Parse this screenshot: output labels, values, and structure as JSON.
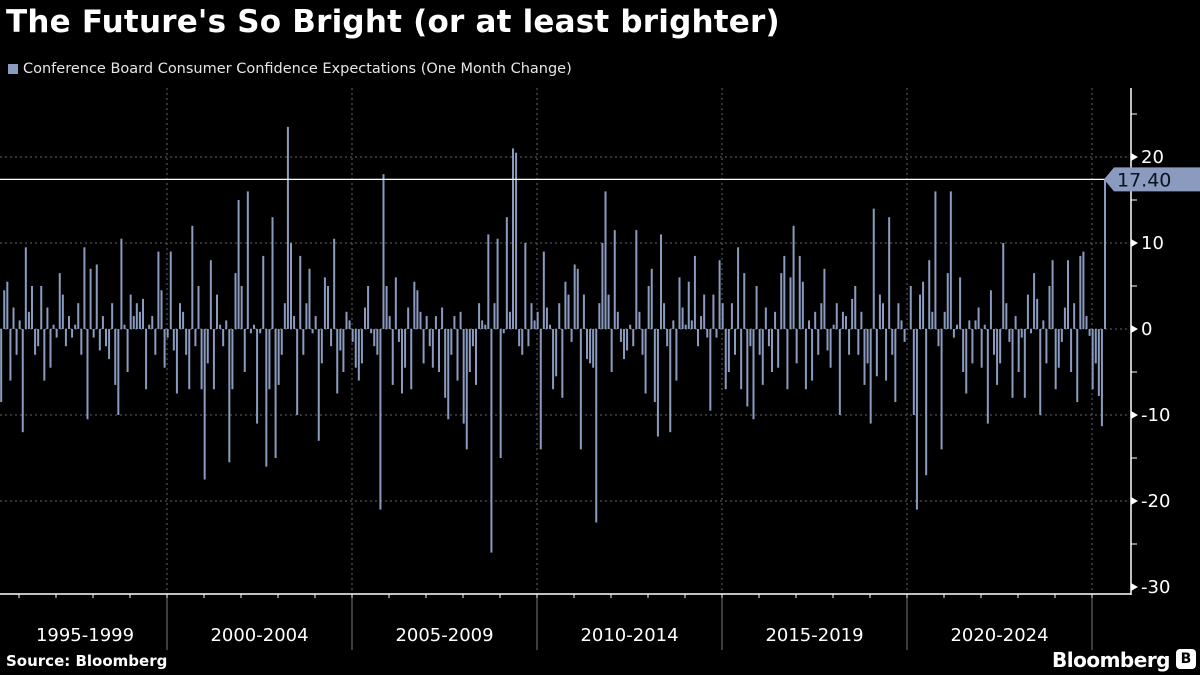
{
  "chart_data": {
    "type": "bar",
    "title": "The Future's So Bright (or at least brighter)",
    "legend": [
      "Conference Board Consumer Confidence Expectations (One Month Change)"
    ],
    "legend_position": "top-left",
    "series_color": "#8a9bbf",
    "start_month": "1995-07",
    "end_month": "2025-05",
    "frequency": "monthly",
    "values": [
      -8.5,
      4.5,
      5.5,
      -6,
      2.5,
      -3,
      1,
      -12,
      9.5,
      2,
      5,
      -3,
      -2,
      5,
      -6,
      2.5,
      -4.5,
      0.5,
      -1,
      6.5,
      4,
      -2,
      1.5,
      -1,
      0.5,
      3,
      -3,
      9.5,
      -10.5,
      7,
      -1,
      7.5,
      -2.5,
      1.5,
      -2,
      -3.5,
      3,
      -6.5,
      -10,
      10.5,
      0.5,
      -5,
      4,
      1.5,
      3,
      2,
      3.5,
      -7,
      0.5,
      1.5,
      -3,
      9,
      4.5,
      -4.5,
      -1,
      9,
      -2.5,
      -7.5,
      3,
      2,
      -3,
      -7,
      12,
      -2,
      5,
      -7,
      -17.5,
      -4,
      8,
      -7,
      4,
      0.5,
      -2,
      1,
      -15.5,
      -7,
      6.5,
      15,
      5,
      -5,
      16,
      -0.5,
      0.5,
      -11,
      -0.5,
      8.5,
      -16,
      -7,
      13,
      -15,
      -6.5,
      -3,
      3,
      23.5,
      10,
      1.5,
      -10,
      8.5,
      -3,
      3,
      7,
      -0.5,
      1.5,
      -13,
      -4,
      6,
      5,
      -2,
      10.5,
      -7.5,
      -2.5,
      -5,
      2,
      1,
      -1.5,
      -4.5,
      -6,
      -4,
      2.5,
      5,
      -0.5,
      -2,
      -3,
      -21,
      18,
      5,
      1.5,
      -6.5,
      6,
      -1.5,
      -7.5,
      -4.5,
      2.5,
      -7,
      5.5,
      4.5,
      2,
      -4,
      1.5,
      -2,
      -4.5,
      1.5,
      -5,
      2.5,
      -8,
      -10.5,
      -3,
      1.5,
      -6,
      2,
      -11,
      -14,
      -5,
      -2,
      -6.5,
      3,
      1,
      0.5,
      11,
      -26,
      3,
      10.5,
      -15,
      -0.5,
      13,
      2,
      21,
      20.5,
      -2,
      -3,
      10,
      -2,
      3,
      1,
      2,
      -14,
      9,
      2.5,
      0.5,
      -7,
      -5.5,
      3,
      -8,
      5.5,
      4,
      -1.5,
      7.5,
      7,
      -14,
      4,
      -3.5,
      -4,
      -4.5,
      -22.5,
      3,
      10,
      16,
      4,
      -5,
      11.5,
      2,
      -1.5,
      -3.5,
      -2.5,
      0.5,
      -2,
      11.5,
      2,
      -3,
      -7.5,
      5,
      7,
      -8.5,
      -12.5,
      11,
      3,
      -2,
      -12,
      1,
      -6,
      6,
      2.5,
      0.5,
      5.5,
      1,
      8.5,
      -2,
      1.5,
      4,
      -1,
      -9.5,
      4,
      -1,
      8,
      3,
      -7,
      -5,
      3,
      -3,
      9.5,
      -7,
      6.5,
      -9,
      -2,
      -10.5,
      5,
      -3,
      -6.5,
      2.5,
      -2,
      -5,
      2,
      -4.5,
      6.5,
      8.5,
      -7,
      6,
      12,
      -4,
      8.5,
      5.5,
      -7,
      1,
      -6,
      2,
      -3,
      3,
      7,
      -2.5,
      -4.5,
      0.5,
      3,
      -10,
      2,
      1.5,
      -3,
      3.5,
      5,
      -3,
      2,
      -6.5,
      -4,
      -11,
      14,
      -5.5,
      4,
      3,
      -6,
      13,
      -3,
      -8.5,
      3,
      1,
      -1.5,
      0,
      5,
      -10,
      -21,
      4,
      5.5,
      -17,
      8,
      2,
      16,
      -2,
      -14,
      2,
      6.5,
      16,
      -1,
      0.5,
      6,
      -5,
      -7.5,
      1,
      -4,
      1,
      2.5,
      -4.5,
      0.5,
      -11,
      4.5,
      -3,
      -6.5,
      -4,
      10,
      3,
      -1.5,
      -8,
      1.5,
      -5,
      -1,
      -8,
      4,
      -0.5,
      6.5,
      3.5,
      -10,
      1,
      -4,
      5,
      8,
      -7,
      -4.5,
      -1.5,
      2.5,
      8,
      -5,
      3,
      -8.5,
      8.5,
      9,
      1.5,
      -0.8,
      -7,
      -4,
      -7.8,
      -11.3,
      17.4
    ],
    "last_value_label": "17.40",
    "reference_line_value": 17.4,
    "ylim": [
      -31,
      28
    ],
    "yticks": [
      20,
      10,
      0,
      -10,
      -20,
      -30
    ],
    "ytick_labels": [
      "20",
      "10",
      "0",
      "-10",
      "-20",
      "-30"
    ],
    "xtick_labels": [
      "1995-1999",
      "2000-2004",
      "2005-2009",
      "2010-2014",
      "2015-2019",
      "2020-2024"
    ],
    "xlabel": "",
    "ylabel": "",
    "grid": true
  },
  "footer": {
    "source": "Source: Bloomberg",
    "brand": "Bloomberg"
  }
}
